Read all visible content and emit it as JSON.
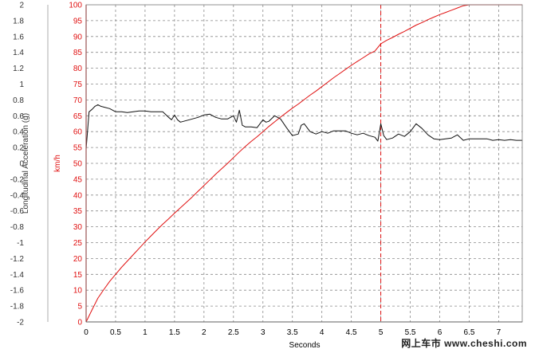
{
  "chart_data": {
    "type": "line",
    "xlabel": "Seconds",
    "left_ylabel": "Longitudinal Acceleration (g)",
    "right_ylabel": "km/h",
    "xlim": [
      0,
      7.4
    ],
    "x_ticks": [
      "0",
      "0.5",
      "1",
      "1.5",
      "2",
      "2.5",
      "3",
      "3.5",
      "4",
      "4.5",
      "5",
      "5.5",
      "6",
      "6.5",
      "7"
    ],
    "left_ylim": [
      -2,
      2
    ],
    "left_ticks": [
      "2",
      "1.8",
      "1.6",
      "1.4",
      "1.2",
      "1",
      "0.8",
      "0.6",
      "0.4",
      "0.2",
      "0",
      "-0.2",
      "-0.4",
      "-0.6",
      "-0.8",
      "-1",
      "-1.2",
      "-1.4",
      "-1.6",
      "-1.8",
      "-2"
    ],
    "right_ylim": [
      0,
      100
    ],
    "right_ticks": [
      "100",
      "95",
      "90",
      "85",
      "80",
      "75",
      "70",
      "65",
      "60",
      "55",
      "50",
      "45",
      "40",
      "35",
      "30",
      "25",
      "20",
      "15",
      "10",
      "5",
      "0"
    ],
    "grid": true,
    "marker_x": 5.0,
    "series": [
      {
        "axis": "right",
        "color": "#e01010",
        "x": [
          0,
          0.1,
          0.2,
          0.3,
          0.4,
          0.5,
          0.6,
          0.7,
          0.8,
          0.9,
          1.0,
          1.1,
          1.2,
          1.3,
          1.4,
          1.5,
          1.6,
          1.7,
          1.8,
          1.9,
          2.0,
          2.1,
          2.2,
          2.3,
          2.4,
          2.5,
          2.6,
          2.7,
          2.8,
          2.9,
          3.0,
          3.1,
          3.2,
          3.3,
          3.4,
          3.5,
          3.6,
          3.7,
          3.8,
          3.9,
          4.0,
          4.1,
          4.2,
          4.3,
          4.4,
          4.5,
          4.6,
          4.7,
          4.8,
          4.9,
          5.0,
          5.1,
          5.2,
          5.3,
          5.4,
          5.5,
          5.6,
          5.7,
          5.8,
          5.9,
          6.0,
          6.1,
          6.2,
          6.3,
          6.4,
          6.5,
          6.6,
          6.7,
          6.8,
          6.9,
          7.0,
          7.1,
          7.2,
          7.3,
          7.4
        ],
        "values": [
          0,
          3.8,
          7.5,
          10.2,
          12.8,
          15.0,
          17.2,
          19.2,
          21.2,
          23.2,
          25.2,
          27.1,
          29.0,
          30.8,
          32.5,
          34.3,
          36.0,
          37.7,
          39.4,
          41.2,
          43.0,
          44.8,
          46.6,
          48.3,
          50.0,
          51.8,
          53.6,
          55.3,
          56.9,
          58.4,
          60.0,
          61.6,
          63.1,
          64.6,
          66.0,
          67.4,
          68.7,
          70.1,
          71.5,
          72.8,
          74.2,
          75.6,
          77.0,
          78.3,
          79.6,
          80.9,
          82.1,
          83.3,
          84.5,
          85.4,
          87.7,
          88.8,
          89.7,
          90.7,
          91.6,
          92.6,
          93.6,
          94.4,
          95.3,
          96.1,
          96.9,
          97.6,
          98.3,
          99.0,
          99.7,
          100.4,
          101.1,
          101.8,
          102.5,
          103.2,
          104.0,
          104.6,
          105.3,
          106.0,
          106.7
        ]
      },
      {
        "axis": "left",
        "color": "#111111",
        "x": [
          0,
          0.05,
          0.1,
          0.15,
          0.2,
          0.25,
          0.3,
          0.4,
          0.5,
          0.6,
          0.7,
          0.8,
          0.9,
          1.0,
          1.1,
          1.2,
          1.3,
          1.4,
          1.45,
          1.5,
          1.55,
          1.6,
          1.7,
          1.8,
          1.9,
          2.0,
          2.1,
          2.2,
          2.3,
          2.4,
          2.5,
          2.55,
          2.6,
          2.65,
          2.7,
          2.8,
          2.9,
          3.0,
          3.05,
          3.1,
          3.2,
          3.3,
          3.4,
          3.5,
          3.6,
          3.65,
          3.7,
          3.8,
          3.9,
          4.0,
          4.1,
          4.2,
          4.3,
          4.4,
          4.5,
          4.6,
          4.7,
          4.8,
          4.9,
          4.95,
          5.0,
          5.05,
          5.1,
          5.2,
          5.3,
          5.4,
          5.5,
          5.6,
          5.7,
          5.8,
          5.9,
          6.0,
          6.1,
          6.2,
          6.3,
          6.4,
          6.5,
          6.6,
          6.7,
          6.8,
          6.9,
          7.0,
          7.1,
          7.2,
          7.3,
          7.4
        ],
        "values": [
          0.18,
          0.65,
          0.68,
          0.72,
          0.74,
          0.72,
          0.71,
          0.69,
          0.65,
          0.65,
          0.64,
          0.65,
          0.66,
          0.66,
          0.65,
          0.65,
          0.65,
          0.58,
          0.55,
          0.61,
          0.55,
          0.52,
          0.54,
          0.56,
          0.58,
          0.61,
          0.62,
          0.58,
          0.56,
          0.56,
          0.6,
          0.52,
          0.67,
          0.48,
          0.46,
          0.46,
          0.45,
          0.55,
          0.52,
          0.53,
          0.6,
          0.56,
          0.45,
          0.35,
          0.37,
          0.48,
          0.5,
          0.4,
          0.37,
          0.4,
          0.38,
          0.41,
          0.41,
          0.41,
          0.38,
          0.36,
          0.38,
          0.35,
          0.33,
          0.28,
          0.5,
          0.35,
          0.3,
          0.32,
          0.37,
          0.34,
          0.4,
          0.5,
          0.44,
          0.36,
          0.31,
          0.3,
          0.31,
          0.32,
          0.36,
          0.29,
          0.31,
          0.31,
          0.31,
          0.31,
          0.29,
          0.3,
          0.29,
          0.3,
          0.29,
          0.29
        ]
      }
    ]
  },
  "watermark": "网上车市  www.cheshi.com"
}
